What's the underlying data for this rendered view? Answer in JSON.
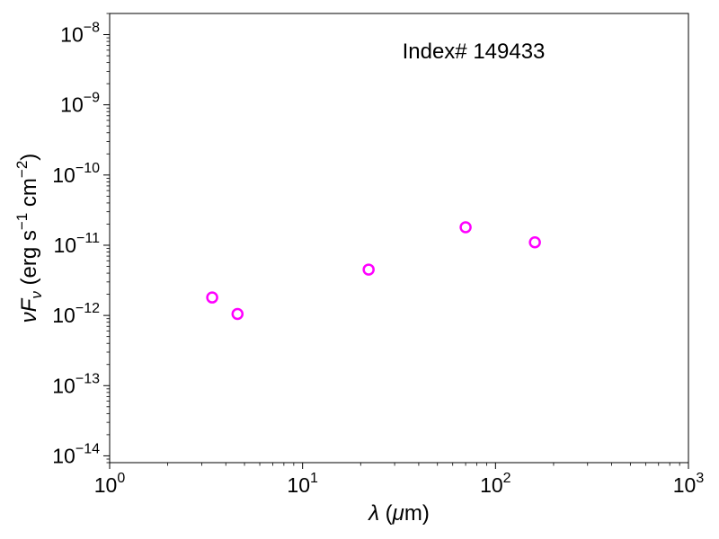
{
  "chart_data": {
    "type": "scatter",
    "xscale": "log",
    "yscale": "log",
    "xlim": [
      1,
      1000
    ],
    "ylim": [
      8e-15,
      2e-08
    ],
    "x_ticks": [
      {
        "base": "10",
        "exp": "0",
        "value": 1
      },
      {
        "base": "10",
        "exp": "1",
        "value": 10
      },
      {
        "base": "10",
        "exp": "2",
        "value": 100
      },
      {
        "base": "10",
        "exp": "3",
        "value": 1000
      }
    ],
    "y_ticks": [
      {
        "base": "10",
        "exp": "−14",
        "value": 1e-14
      },
      {
        "base": "10",
        "exp": "−13",
        "value": 1e-13
      },
      {
        "base": "10",
        "exp": "−12",
        "value": 1e-12
      },
      {
        "base": "10",
        "exp": "−11",
        "value": 1e-11
      },
      {
        "base": "10",
        "exp": "−10",
        "value": 1e-10
      },
      {
        "base": "10",
        "exp": "−9",
        "value": 1e-09
      },
      {
        "base": "10",
        "exp": "−8",
        "value": 1e-08
      }
    ],
    "xlabel": {
      "symbol": "λ",
      "rest": " (",
      "mu": "μ",
      "unit": "m)"
    },
    "ylabel": {
      "nu": "ν",
      "F": "F",
      "sub": "ν",
      "open": " (erg s",
      "e1": "−1",
      "mid": " cm",
      "e2": "−2",
      "close": ")"
    },
    "annotation": "Index# 149433",
    "marker_color": "#ff00ff",
    "points": [
      {
        "x": 3.4,
        "y": 1.8e-12
      },
      {
        "x": 4.6,
        "y": 1.05e-12
      },
      {
        "x": 22,
        "y": 4.5e-12
      },
      {
        "x": 70,
        "y": 1.8e-11
      },
      {
        "x": 160,
        "y": 1.1e-11
      }
    ]
  }
}
